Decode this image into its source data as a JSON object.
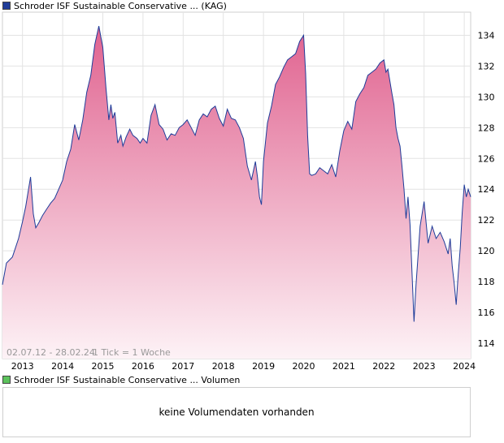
{
  "legend": {
    "price_label": "Schroder ISF Sustainable Conservative ... (KAG)",
    "volume_label": "Schroder ISF Sustainable Conservative ... Volumen"
  },
  "colors": {
    "line": "#1f3c99",
    "fill_top": "#e0628f",
    "fill_bottom": "#fdf2f6",
    "grid": "#e3e3e3"
  },
  "chart_data": {
    "type": "area",
    "title": "Schroder ISF Sustainable Conservative ... (KAG)",
    "date_range": "02.07.12 - 28.02.24",
    "tick_info": "1 Tick = 1 Woche",
    "ylim": [
      113,
      135.5
    ],
    "xlim": [
      2012.5,
      2024.16
    ],
    "y_ticks": [
      114,
      116,
      118,
      120,
      122,
      124,
      126,
      128,
      130,
      132,
      134
    ],
    "x_ticks": [
      2013,
      2014,
      2015,
      2016,
      2017,
      2018,
      2019,
      2020,
      2021,
      2022,
      2023,
      2024
    ],
    "x_tick_labels": [
      "2013",
      "2014",
      "2015",
      "2016",
      "2017",
      "2018",
      "2019",
      "2020",
      "2021",
      "2022",
      "2023",
      "2024"
    ],
    "series": [
      {
        "name": "Schroder ISF Sustainable Conservative",
        "x": [
          2012.5,
          2012.6,
          2012.75,
          2012.9,
          2013.0,
          2013.08,
          2013.15,
          2013.2,
          2013.27,
          2013.33,
          2013.4,
          2013.5,
          2013.6,
          2013.7,
          2013.8,
          2013.9,
          2014.0,
          2014.1,
          2014.2,
          2014.3,
          2014.4,
          2014.5,
          2014.6,
          2014.7,
          2014.8,
          2014.9,
          2015.0,
          2015.08,
          2015.15,
          2015.2,
          2015.25,
          2015.3,
          2015.37,
          2015.45,
          2015.5,
          2015.58,
          2015.67,
          2015.75,
          2015.85,
          2015.93,
          2016.0,
          2016.1,
          2016.2,
          2016.3,
          2016.4,
          2016.5,
          2016.6,
          2016.7,
          2016.8,
          2016.9,
          2017.0,
          2017.1,
          2017.2,
          2017.3,
          2017.4,
          2017.5,
          2017.6,
          2017.7,
          2017.8,
          2017.9,
          2018.0,
          2018.1,
          2018.2,
          2018.3,
          2018.4,
          2018.5,
          2018.6,
          2018.7,
          2018.8,
          2018.85,
          2018.9,
          2018.95,
          2019.0,
          2019.1,
          2019.2,
          2019.3,
          2019.4,
          2019.5,
          2019.6,
          2019.7,
          2019.8,
          2019.9,
          2020.0,
          2020.05,
          2020.1,
          2020.15,
          2020.2,
          2020.3,
          2020.4,
          2020.5,
          2020.6,
          2020.7,
          2020.8,
          2020.9,
          2021.0,
          2021.1,
          2021.2,
          2021.3,
          2021.4,
          2021.5,
          2021.6,
          2021.7,
          2021.8,
          2021.9,
          2022.0,
          2022.05,
          2022.1,
          2022.15,
          2022.2,
          2022.25,
          2022.3,
          2022.35,
          2022.4,
          2022.45,
          2022.5,
          2022.55,
          2022.6,
          2022.65,
          2022.7,
          2022.75,
          2022.8,
          2022.9,
          2023.0,
          2023.1,
          2023.2,
          2023.3,
          2023.4,
          2023.5,
          2023.6,
          2023.65,
          2023.7,
          2023.75,
          2023.8,
          2023.85,
          2023.9,
          2023.95,
          2024.0,
          2024.05,
          2024.1,
          2024.16
        ],
        "values": [
          117.8,
          119.2,
          119.6,
          120.8,
          121.9,
          122.9,
          124.0,
          124.8,
          122.4,
          121.5,
          121.8,
          122.3,
          122.7,
          123.1,
          123.4,
          124.0,
          124.6,
          125.8,
          126.6,
          128.2,
          127.2,
          128.5,
          130.3,
          131.4,
          133.4,
          134.6,
          133.2,
          130.5,
          128.5,
          129.5,
          128.6,
          129.0,
          127.0,
          127.5,
          126.8,
          127.4,
          127.9,
          127.5,
          127.3,
          127.0,
          127.3,
          127.0,
          128.8,
          129.5,
          128.2,
          127.9,
          127.2,
          127.6,
          127.5,
          128.0,
          128.2,
          128.5,
          128.0,
          127.5,
          128.5,
          128.9,
          128.7,
          129.2,
          129.4,
          128.6,
          128.1,
          129.2,
          128.6,
          128.5,
          128.0,
          127.3,
          125.5,
          124.6,
          125.8,
          124.8,
          123.5,
          123.0,
          125.8,
          128.3,
          129.4,
          130.8,
          131.3,
          131.9,
          132.4,
          132.6,
          132.8,
          133.6,
          134.0,
          131.5,
          127.5,
          125.0,
          124.9,
          125.0,
          125.4,
          125.2,
          125.0,
          125.6,
          124.8,
          126.5,
          127.8,
          128.4,
          127.9,
          129.7,
          130.2,
          130.6,
          131.4,
          131.6,
          131.8,
          132.2,
          132.4,
          131.6,
          131.8,
          131.0,
          130.2,
          129.5,
          128.0,
          127.3,
          126.8,
          125.5,
          124.0,
          122.1,
          123.5,
          121.7,
          118.5,
          115.4,
          117.8,
          121.6,
          123.2,
          120.5,
          121.6,
          120.8,
          121.2,
          120.6,
          119.8,
          120.8,
          119.0,
          117.9,
          116.5,
          118.5,
          120.2,
          122.5,
          124.3,
          123.5,
          124.0,
          123.5
        ]
      }
    ]
  },
  "volume": {
    "message": "keine Volumendaten vorhanden"
  }
}
